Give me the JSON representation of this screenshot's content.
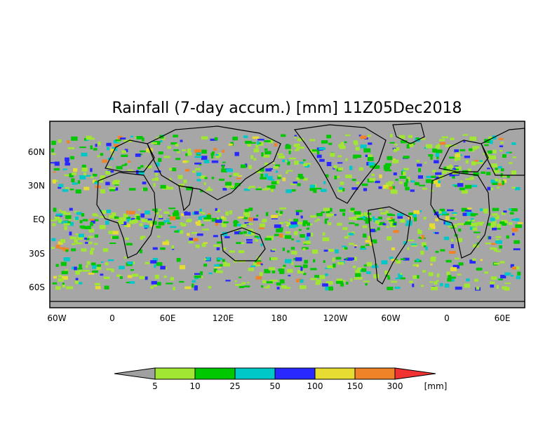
{
  "title": "Rainfall (7-day accum.) [mm] 11Z05Dec2018",
  "map": {
    "lat_labels": [
      "60N",
      "30N",
      "EQ",
      "30S",
      "60S"
    ],
    "lon_labels": [
      "60W",
      "0",
      "60E",
      "120E",
      "180",
      "120W",
      "60W",
      "0",
      "60E"
    ],
    "colors": {
      "frame": "#000000",
      "land_outline": "#000000",
      "background_no_rain": "#a6a6a6"
    }
  },
  "colorbar": {
    "levels": [
      "5",
      "10",
      "25",
      "50",
      "100",
      "150",
      "300"
    ],
    "unit": "[mm]",
    "colors": [
      "#a0a0a0",
      "#a0e632",
      "#00c800",
      "#00c8c8",
      "#2828ff",
      "#e6dc32",
      "#f08228",
      "#f03232"
    ]
  }
}
